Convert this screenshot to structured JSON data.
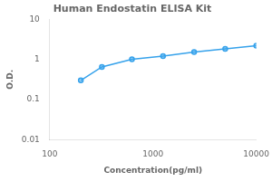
{
  "chart_data": {
    "type": "line",
    "title": "Human Endostatin ELISA Kit",
    "xlabel": "Concentration(pg/ml)",
    "ylabel": "O.D.",
    "x": [
      200,
      320,
      625,
      1250,
      2500,
      5000,
      10000
    ],
    "values": [
      0.3,
      0.65,
      1.0,
      1.2,
      1.52,
      1.82,
      2.18
    ],
    "log": true,
    "xlim": [
      100,
      10000
    ],
    "ylim": [
      0.01,
      10
    ],
    "xticks": [
      100,
      1000,
      10000
    ],
    "yticks": [
      0.01,
      0.1,
      1,
      10
    ],
    "grid": false,
    "marker": "circle"
  }
}
